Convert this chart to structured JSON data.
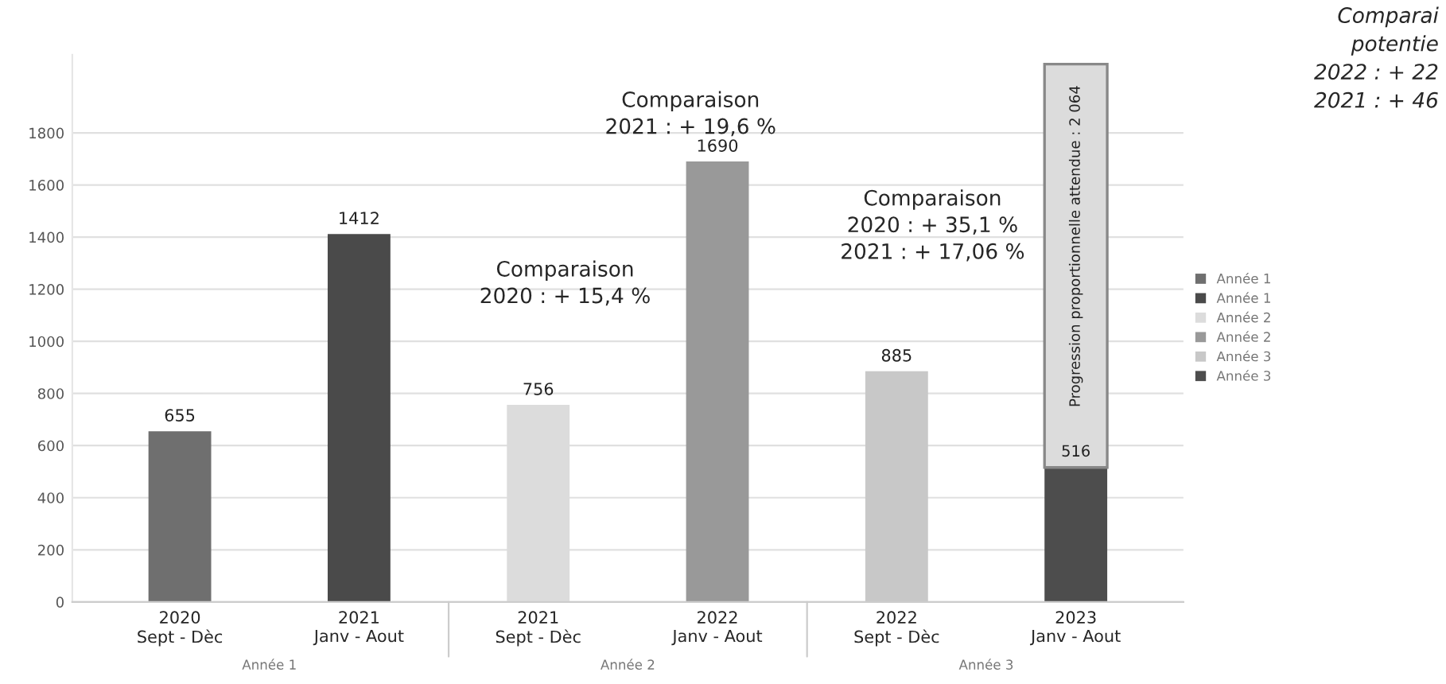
{
  "chart_data": {
    "type": "bar",
    "stacked": true,
    "categories": [
      "2020\nSept - Dèc",
      "2021\nJanv - Aout",
      "2021\nSept - Dèc",
      "2022\nJanv - Aout",
      "2022\nSept - Dèc",
      "2023\nJanv - Aout"
    ],
    "series": [
      {
        "name": "Année 1",
        "color": "#6f6f6f",
        "values": [
          655,
          null,
          null,
          null,
          null,
          null
        ],
        "value_labels": [
          "655",
          null,
          null,
          null,
          null,
          null
        ]
      },
      {
        "name": "Année 1",
        "color": "#4a4a4a",
        "values": [
          null,
          1412,
          null,
          null,
          null,
          null
        ],
        "value_labels": [
          null,
          "1412",
          null,
          null,
          null,
          null
        ]
      },
      {
        "name": "Année 2",
        "color": "#dcdcdc",
        "values": [
          null,
          null,
          756,
          null,
          null,
          null
        ],
        "value_labels": [
          null,
          null,
          "756",
          null,
          null,
          null
        ]
      },
      {
        "name": "Année 2",
        "color": "#999999",
        "values": [
          null,
          null,
          null,
          1690,
          null,
          null
        ],
        "value_labels": [
          null,
          null,
          null,
          "1690",
          null,
          null
        ]
      },
      {
        "name": "Année 3",
        "color": "#c8c8c8",
        "values": [
          null,
          null,
          null,
          null,
          885,
          null
        ],
        "value_labels": [
          null,
          null,
          null,
          null,
          "885",
          null
        ]
      },
      {
        "name": "Année 3",
        "color": "#4d4d4d",
        "values": [
          null,
          null,
          null,
          null,
          null,
          516
        ],
        "value_labels": [
          null,
          null,
          null,
          null,
          null,
          "516"
        ]
      },
      {
        "color": "#dcdcdc",
        "values": [
          null,
          null,
          null,
          null,
          null,
          1548
        ]
      }
    ],
    "ylim": [
      0,
      2100
    ],
    "yticks": [
      0,
      200,
      400,
      600,
      800,
      1000,
      1200,
      1400,
      1600,
      1800
    ],
    "grid": "y",
    "legend": "right",
    "annotations": [
      "Comparaison\n2020 : + 15,4 %",
      "Comparaison\n2021 : + 19,6 %",
      "Comparaison\n2020 : + 35,1 %\n2021 : + 17,06 %",
      "Comparai\npotentie\n2022 : + 22\n2021 : + 46",
      "Année 1",
      "Année 2",
      "Année 3",
      "Progression proportionnelle attendue : 2 064"
    ]
  }
}
